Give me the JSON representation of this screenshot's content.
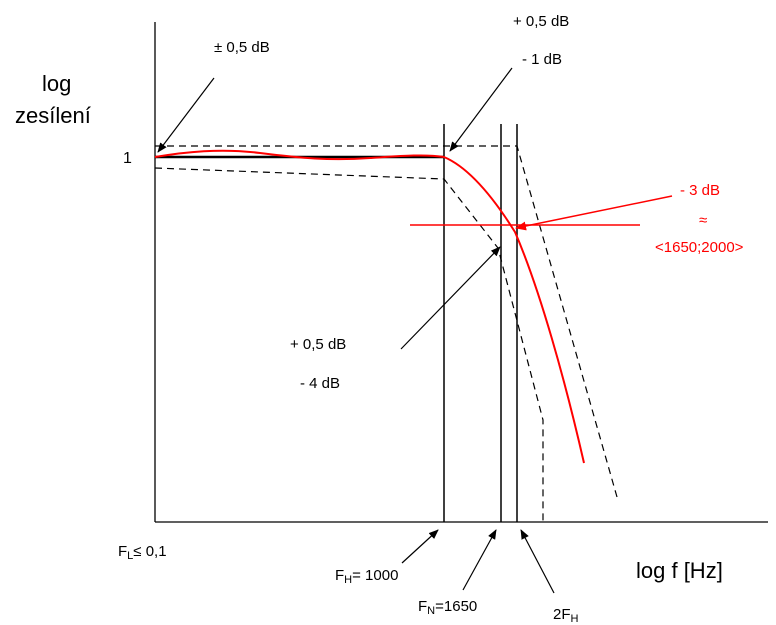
{
  "labels": {
    "y_axis_line1": "log",
    "y_axis_line2": "zesílení",
    "x_axis": "log f [Hz]",
    "y_tick_one": "1",
    "tol_flat": "± 0,5 dB",
    "tol_upper_1": "+ 0,5 dB",
    "tol_upper_2": "- 1 dB",
    "tol_lower_1": "+ 0,5 dB",
    "tol_lower_2": "- 4 dB",
    "minus3db": "- 3 dB",
    "approx": "≈",
    "range": "<1650;2000>"
  },
  "freq_labels": {
    "fl_main": "F",
    "fl_sub": "L",
    "fl_value": "≤ 0,1",
    "fh_main": "F",
    "fh_sub": "H",
    "fh_value": "= 1000",
    "fn_main": "F",
    "fn_sub": "N",
    "fn_value": "=1650",
    "f2h_main": "2F",
    "f2h_sub": "H"
  },
  "colors": {
    "axis": "#000000",
    "tolerance": "#000000",
    "response": "#ff0000",
    "annotation_red": "#ff0000"
  }
}
